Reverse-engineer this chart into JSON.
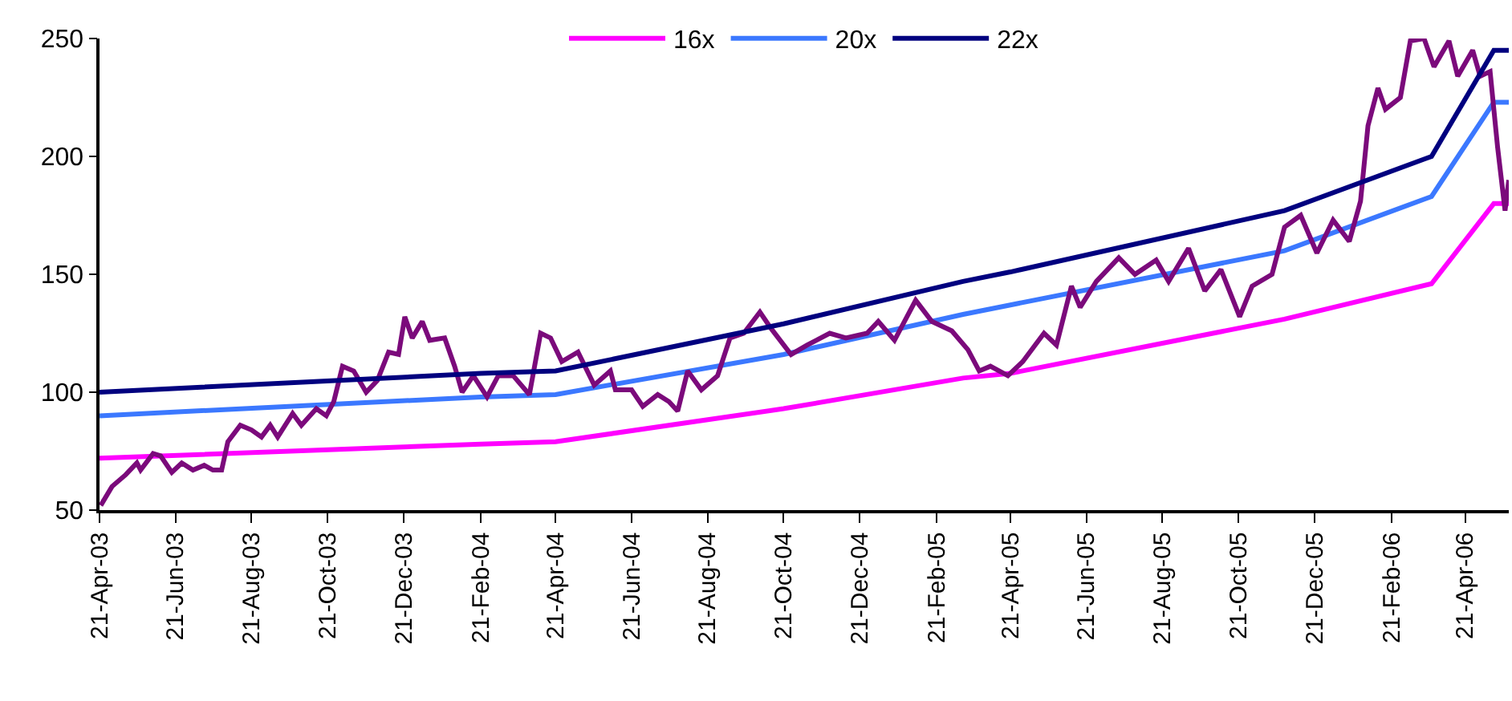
{
  "chart_data": {
    "type": "line",
    "xlim": [
      "2003-04-21",
      "2006-05-26"
    ],
    "ylim": [
      50,
      250
    ],
    "yticks": [
      50,
      100,
      150,
      200,
      250
    ],
    "xticks": [
      {
        "value": "2003-04-21",
        "label": "21-Apr-03"
      },
      {
        "value": "2003-06-21",
        "label": "21-Jun-03"
      },
      {
        "value": "2003-08-21",
        "label": "21-Aug-03"
      },
      {
        "value": "2003-10-21",
        "label": "21-Oct-03"
      },
      {
        "value": "2003-12-21",
        "label": "21-Dec-03"
      },
      {
        "value": "2004-02-21",
        "label": "21-Feb-04"
      },
      {
        "value": "2004-04-21",
        "label": "21-Apr-04"
      },
      {
        "value": "2004-06-21",
        "label": "21-Jun-04"
      },
      {
        "value": "2004-08-21",
        "label": "21-Aug-04"
      },
      {
        "value": "2004-10-21",
        "label": "21-Oct-04"
      },
      {
        "value": "2004-12-21",
        "label": "21-Dec-04"
      },
      {
        "value": "2005-02-21",
        "label": "21-Feb-05"
      },
      {
        "value": "2005-04-21",
        "label": "21-Apr-05"
      },
      {
        "value": "2005-06-21",
        "label": "21-Jun-05"
      },
      {
        "value": "2005-08-21",
        "label": "21-Aug-05"
      },
      {
        "value": "2005-10-21",
        "label": "21-Oct-05"
      },
      {
        "value": "2005-12-21",
        "label": "21-Dec-05"
      },
      {
        "value": "2006-02-21",
        "label": "21-Feb-06"
      },
      {
        "value": "2006-04-21",
        "label": "21-Apr-06"
      }
    ],
    "grid": false,
    "legend": "top",
    "marker": "none",
    "line_style": "solid",
    "series": [
      {
        "name": "16x",
        "color": "#ff00ff",
        "x": [
          "2003-04-21",
          "2004-02-21",
          "2004-04-21",
          "2004-10-21",
          "2005-03-14",
          "2005-04-21",
          "2005-11-27",
          "2006-03-25",
          "2006-05-14",
          "2006-05-26"
        ],
        "values": [
          72,
          78,
          79,
          93,
          106,
          108,
          131,
          146,
          180,
          180
        ]
      },
      {
        "name": "20x",
        "color": "#3b78ff",
        "x": [
          "2003-04-21",
          "2004-02-21",
          "2004-04-21",
          "2004-10-21",
          "2005-03-14",
          "2005-04-21",
          "2005-11-27",
          "2006-03-25",
          "2006-05-14",
          "2006-05-26"
        ],
        "values": [
          90,
          98,
          99,
          116,
          133,
          137,
          160,
          183,
          223,
          223
        ]
      },
      {
        "color": "#7b0a7b",
        "x": [
          "2003-04-22",
          "2003-05-01",
          "2003-05-12",
          "2003-05-21",
          "2003-05-24",
          "2003-06-03",
          "2003-06-09",
          "2003-06-18",
          "2003-06-26",
          "2003-07-05",
          "2003-07-14",
          "2003-07-21",
          "2003-07-28",
          "2003-08-02",
          "2003-08-12",
          "2003-08-21",
          "2003-08-29",
          "2003-09-05",
          "2003-09-11",
          "2003-09-23",
          "2003-09-30",
          "2003-10-12",
          "2003-10-20",
          "2003-10-26",
          "2003-11-02",
          "2003-11-11",
          "2003-11-21",
          "2003-11-30",
          "2003-12-09",
          "2003-12-17",
          "2003-12-22",
          "2003-12-28",
          "2004-01-05",
          "2004-01-11",
          "2004-01-23",
          "2004-01-31",
          "2004-02-06",
          "2004-02-15",
          "2004-02-26",
          "2004-03-06",
          "2004-03-18",
          "2004-03-31",
          "2004-04-09",
          "2004-04-17",
          "2004-04-26",
          "2004-05-09",
          "2004-05-22",
          "2004-06-04",
          "2004-06-08",
          "2004-06-21",
          "2004-06-30",
          "2004-07-12",
          "2004-07-21",
          "2004-07-28",
          "2004-08-05",
          "2004-08-16",
          "2004-08-29",
          "2004-09-08",
          "2004-09-19",
          "2004-10-02",
          "2004-10-11",
          "2004-10-27",
          "2004-11-09",
          "2004-11-27",
          "2004-12-10",
          "2004-12-27",
          "2005-01-05",
          "2005-01-18",
          "2005-02-04",
          "2005-02-17",
          "2005-03-05",
          "2005-03-18",
          "2005-03-27",
          "2005-04-05",
          "2005-04-19",
          "2005-05-01",
          "2005-05-18",
          "2005-05-28",
          "2005-06-09",
          "2005-06-16",
          "2005-06-29",
          "2005-07-17",
          "2005-07-30",
          "2005-08-16",
          "2005-08-26",
          "2005-09-11",
          "2005-09-24",
          "2005-10-07",
          "2005-10-22",
          "2005-11-01",
          "2005-11-17",
          "2005-11-27",
          "2005-12-10",
          "2005-12-23",
          "2006-01-05",
          "2006-01-18",
          "2006-01-27",
          "2006-02-02",
          "2006-02-10",
          "2006-02-16",
          "2006-02-28",
          "2006-03-08",
          "2006-03-19",
          "2006-03-27",
          "2006-04-08",
          "2006-04-15",
          "2006-04-27",
          "2006-05-03",
          "2006-05-11",
          "2006-05-17",
          "2006-05-23",
          "2006-05-26"
        ],
        "values": [
          52,
          60,
          65,
          70,
          67,
          74,
          73,
          66,
          70,
          67,
          69,
          67,
          67,
          79,
          86,
          84,
          81,
          86,
          81,
          91,
          86,
          93,
          90,
          96,
          111,
          109,
          100,
          105,
          117,
          116,
          132,
          123,
          130,
          122,
          123,
          111,
          100,
          107,
          98,
          107,
          107,
          99,
          125,
          123,
          113,
          117,
          103,
          109,
          101,
          101,
          94,
          99,
          96,
          92,
          109,
          101,
          107,
          123,
          125,
          134,
          127,
          116,
          120,
          125,
          123,
          125,
          130,
          122,
          139,
          130,
          126,
          118,
          109,
          111,
          107,
          113,
          125,
          120,
          145,
          136,
          147,
          157,
          150,
          156,
          147,
          161,
          143,
          152,
          132,
          145,
          150,
          170,
          175,
          159,
          173,
          164,
          181,
          213,
          229,
          220,
          225,
          249,
          250,
          238,
          249,
          234,
          245,
          234,
          236,
          204,
          177,
          190
        ]
      },
      {
        "name": "22x",
        "color": "#00007f",
        "x": [
          "2003-04-21",
          "2004-02-21",
          "2004-04-21",
          "2004-10-21",
          "2005-03-14",
          "2005-04-21",
          "2005-11-27",
          "2006-03-25",
          "2006-05-14",
          "2006-05-26"
        ],
        "values": [
          100,
          108,
          109,
          129,
          147,
          151,
          177,
          200,
          245,
          245
        ]
      }
    ]
  }
}
